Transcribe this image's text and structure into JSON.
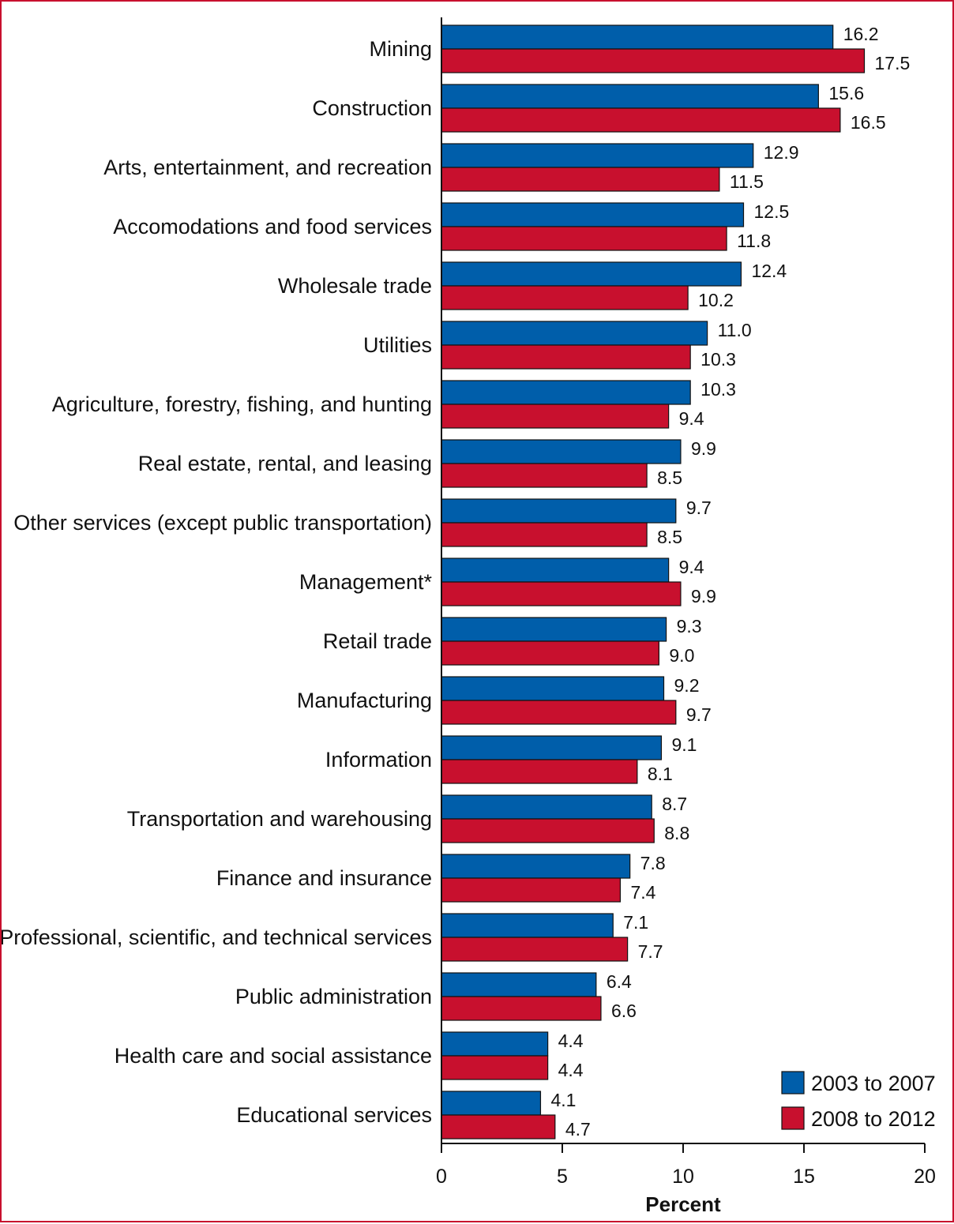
{
  "chart_data": {
    "type": "bar",
    "orientation": "horizontal",
    "categories": [
      "Mining",
      "Construction",
      "Arts, entertainment, and recreation",
      "Accomodations and food services",
      "Wholesale trade",
      "Utilities",
      "Agriculture, forestry, fishing, and hunting",
      "Real estate, rental, and leasing",
      "Other services (except public transportation)",
      "Management*",
      "Retail trade",
      "Manufacturing",
      "Information",
      "Transportation and warehousing",
      "Finance and insurance",
      "Professional, scientific, and technical services",
      "Public administration",
      "Health care and social assistance",
      "Educational services"
    ],
    "series": [
      {
        "name": "2003 to 2007",
        "color": "#005eaa",
        "values": [
          16.2,
          15.6,
          12.9,
          12.5,
          12.4,
          11.0,
          10.3,
          9.9,
          9.7,
          9.4,
          9.3,
          9.2,
          9.1,
          8.7,
          7.8,
          7.1,
          6.4,
          4.4,
          4.1
        ],
        "labels": [
          "16.2",
          "15.6",
          "12.9",
          "12.5",
          "12.4",
          "11.0",
          "10.3",
          "9.9",
          "9.7",
          "9.4",
          "9.3",
          "9.2",
          "9.1",
          "8.7",
          "7.8",
          "7.1",
          "6.4",
          "4.4",
          "4.1"
        ]
      },
      {
        "name": "2008 to 2012",
        "color": "#c8102e",
        "values": [
          17.5,
          16.5,
          11.5,
          11.8,
          10.2,
          10.3,
          9.4,
          8.5,
          8.5,
          9.9,
          9.0,
          9.7,
          8.1,
          8.8,
          7.4,
          7.7,
          6.6,
          4.4,
          4.7
        ],
        "labels": [
          "17.5",
          "16.5",
          "11.5",
          "11.8",
          "10.2",
          "10.3",
          "9.4",
          "8.5",
          "8.5",
          "9.9",
          "9.0",
          "9.7",
          "8.1",
          "8.8",
          "7.4",
          "7.7",
          "6.6",
          "4.4",
          "4.7"
        ]
      }
    ],
    "xlabel": "Percent",
    "ylabel": "",
    "title": "",
    "xlim": [
      0,
      20
    ],
    "xticks": [
      "0",
      "5",
      "10",
      "15",
      "20"
    ],
    "grid": false,
    "legend_position": "bottom-right"
  }
}
